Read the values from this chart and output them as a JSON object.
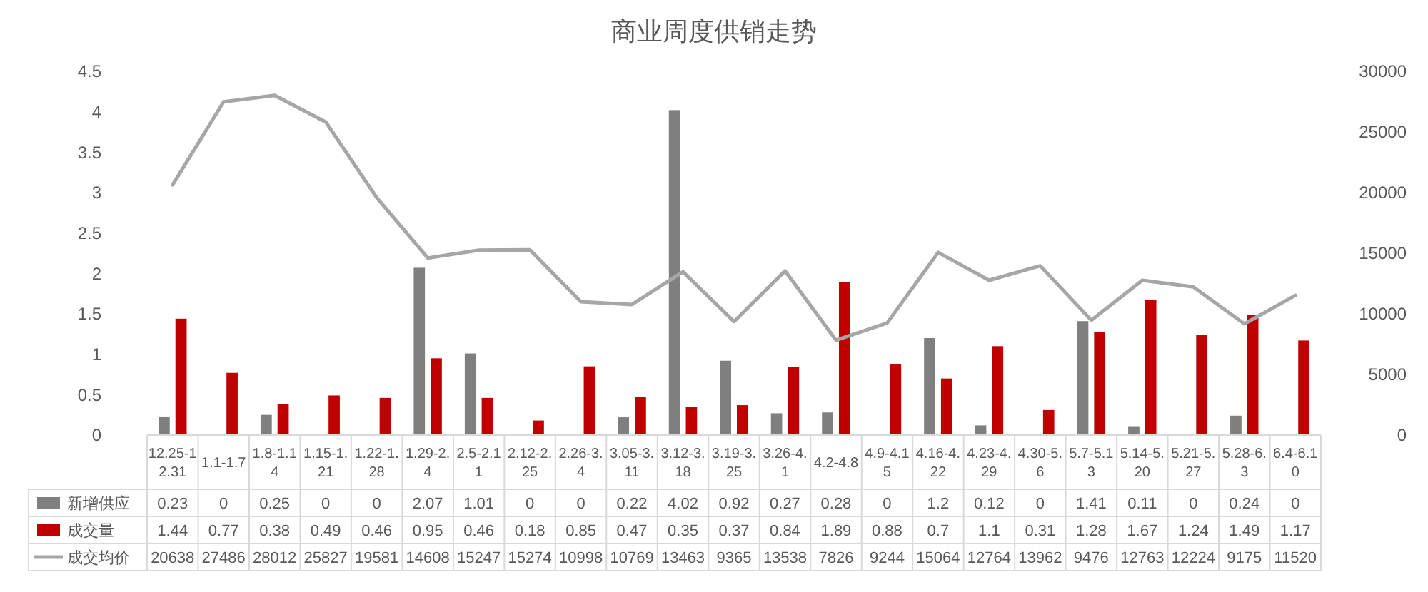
{
  "chart_data": {
    "type": "bar",
    "title": "商业周度供销走势",
    "categories": [
      "12.25-12.31",
      "1.1-1.7",
      "1.8-1.14",
      "1.15-1.21",
      "1.22-1.28",
      "1.29-2.4",
      "2.5-2.11",
      "2.12-2.25",
      "2.26-3.4",
      "3.05-3.11",
      "3.12-3.18",
      "3.19-3.25",
      "3.26-4.1",
      "4.2-4.8",
      "4.9-4.15",
      "4.16-4.22",
      "4.23-4.29",
      "4.30-5.6",
      "5.7-5.13",
      "5.14-5.20",
      "5.21-5.27",
      "5.28-6.3",
      "6.4-6.10"
    ],
    "series": [
      {
        "name": "新增供应",
        "color": "#7f7f7f",
        "values": [
          0.23,
          0,
          0.25,
          0,
          0,
          2.07,
          1.01,
          0,
          0,
          0.22,
          4.02,
          0.92,
          0.27,
          0.28,
          0,
          1.2,
          0.12,
          0,
          1.41,
          0.11,
          0,
          0.24,
          0
        ]
      },
      {
        "name": "成交量",
        "color": "#c00000",
        "values": [
          1.44,
          0.77,
          0.38,
          0.49,
          0.46,
          0.95,
          0.46,
          0.18,
          0.85,
          0.47,
          0.35,
          0.37,
          0.84,
          1.89,
          0.88,
          0.7,
          1.1,
          0.31,
          1.28,
          1.67,
          1.24,
          1.49,
          1.17
        ]
      },
      {
        "name": "成交均价",
        "type": "line",
        "axis": "y2",
        "color": "#a6a6a6",
        "values": [
          20638,
          27486,
          28012,
          25827,
          19581,
          14608,
          15247,
          15274,
          10998,
          10769,
          13463,
          9365,
          13538,
          7826,
          9244,
          15064,
          12764,
          13962,
          9476,
          12763,
          12224,
          9175,
          11520
        ]
      }
    ],
    "ylim": [
      0,
      4.5
    ],
    "yticks": [
      0,
      0.5,
      1,
      1.5,
      2,
      2.5,
      3,
      3.5,
      4,
      4.5
    ],
    "y2lim": [
      0,
      30000
    ],
    "y2ticks": [
      0,
      5000,
      10000,
      15000,
      20000,
      25000,
      30000
    ],
    "data_labels": true,
    "legend": "bottom left",
    "grid": false
  }
}
